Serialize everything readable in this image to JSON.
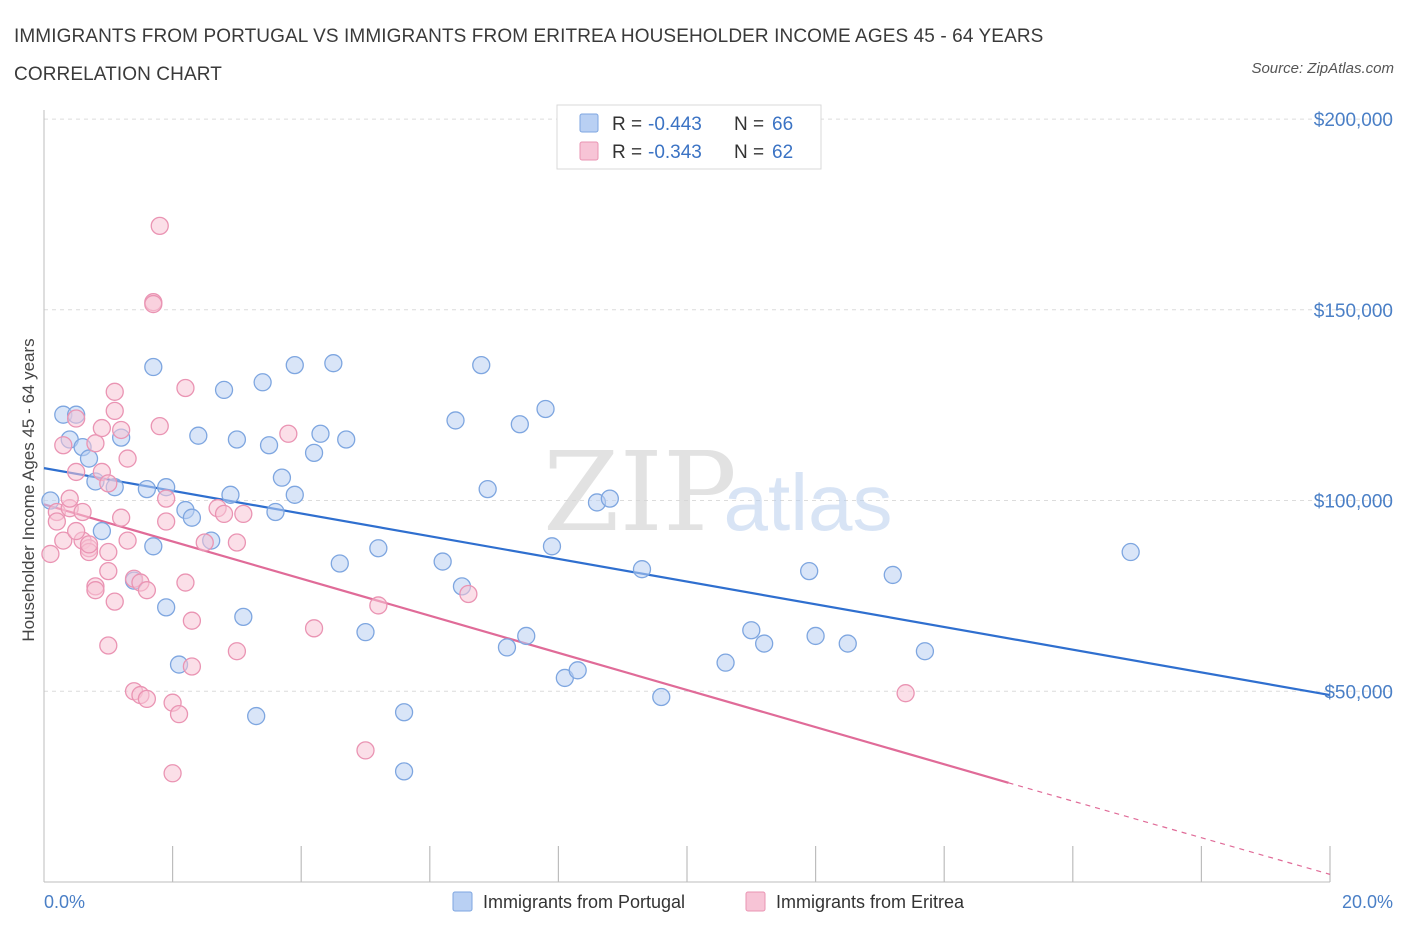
{
  "title": "IMMIGRANTS FROM PORTUGAL VS IMMIGRANTS FROM ERITREA HOUSEHOLDER INCOME AGES 45 - 64 YEARS CORRELATION CHART",
  "source": "Source: ZipAtlas.com",
  "watermark": {
    "zip": "ZIP",
    "atlas": "atlas"
  },
  "chart_data": {
    "type": "scatter",
    "ylabel": "Householder Income Ages 45 - 64 years",
    "xlim": [
      0,
      20
    ],
    "ylim": [
      0,
      205000
    ],
    "x_tick_labels": [
      "0.0%",
      "20.0%"
    ],
    "y_ticks": [
      50000,
      100000,
      150000,
      200000
    ],
    "y_tick_labels": [
      "$50,000",
      "$100,000",
      "$150,000",
      "$200,000"
    ],
    "grid": true,
    "legend": {
      "placement": "top-center",
      "rows": [
        {
          "r_label": "R = ",
          "r": "-0.443",
          "n_label": "N = ",
          "n": "66"
        },
        {
          "r_label": "R = ",
          "r": "-0.343",
          "n_label": "N = ",
          "n": "62"
        }
      ]
    },
    "series": [
      {
        "name": "Immigrants from Portugal",
        "color": "#7ea6e0",
        "fill": "#b9d0f3",
        "line_color": "#2f6fcf",
        "trend": {
          "x": [
            0,
            20
          ],
          "y": [
            108500,
            49000
          ]
        },
        "points": [
          [
            0.1,
            100000
          ],
          [
            0.3,
            122500
          ],
          [
            0.5,
            122500
          ],
          [
            0.4,
            116000
          ],
          [
            0.6,
            114000
          ],
          [
            0.7,
            111000
          ],
          [
            0.8,
            105000
          ],
          [
            1.2,
            116500
          ],
          [
            1.1,
            103500
          ],
          [
            0.9,
            92000
          ],
          [
            1.4,
            79000
          ],
          [
            1.6,
            103000
          ],
          [
            1.7,
            135000
          ],
          [
            1.7,
            88000
          ],
          [
            1.9,
            103500
          ],
          [
            1.9,
            72000
          ],
          [
            2.1,
            57000
          ],
          [
            2.2,
            97500
          ],
          [
            2.3,
            95500
          ],
          [
            2.4,
            117000
          ],
          [
            2.6,
            89500
          ],
          [
            2.8,
            129000
          ],
          [
            2.9,
            101500
          ],
          [
            3.0,
            116000
          ],
          [
            3.1,
            69500
          ],
          [
            3.3,
            43500
          ],
          [
            3.4,
            131000
          ],
          [
            3.5,
            114500
          ],
          [
            3.6,
            97000
          ],
          [
            3.7,
            106000
          ],
          [
            3.9,
            101500
          ],
          [
            3.9,
            135500
          ],
          [
            4.2,
            112500
          ],
          [
            4.3,
            117500
          ],
          [
            4.5,
            136000
          ],
          [
            4.6,
            83500
          ],
          [
            4.7,
            116000
          ],
          [
            5.0,
            65500
          ],
          [
            5.2,
            87500
          ],
          [
            5.6,
            44500
          ],
          [
            5.6,
            29000
          ],
          [
            6.2,
            84000
          ],
          [
            6.4,
            121000
          ],
          [
            6.5,
            77500
          ],
          [
            6.8,
            135500
          ],
          [
            6.9,
            103000
          ],
          [
            7.2,
            61500
          ],
          [
            7.4,
            120000
          ],
          [
            7.5,
            64500
          ],
          [
            7.8,
            124000
          ],
          [
            7.9,
            88000
          ],
          [
            8.1,
            53500
          ],
          [
            8.3,
            55500
          ],
          [
            8.6,
            99500
          ],
          [
            8.8,
            100500
          ],
          [
            9.3,
            82000
          ],
          [
            9.6,
            48500
          ],
          [
            10.6,
            57500
          ],
          [
            11.0,
            66000
          ],
          [
            11.2,
            62500
          ],
          [
            11.9,
            81500
          ],
          [
            12.0,
            64500
          ],
          [
            12.5,
            62500
          ],
          [
            13.2,
            80500
          ],
          [
            13.7,
            60500
          ],
          [
            16.9,
            86500
          ]
        ]
      },
      {
        "name": "Immigrants from Eritrea",
        "color": "#ea94b3",
        "fill": "#f7c4d6",
        "line_color": "#e06b98",
        "trend": {
          "x": [
            0,
            15
          ],
          "y": [
            99000,
            26000
          ]
        },
        "trend_extension": {
          "x": [
            15,
            20
          ],
          "y": [
            26000,
            2000
          ]
        },
        "points": [
          [
            0.1,
            86000
          ],
          [
            0.2,
            97000
          ],
          [
            0.2,
            94500
          ],
          [
            0.3,
            89500
          ],
          [
            0.3,
            114500
          ],
          [
            0.4,
            98000
          ],
          [
            0.4,
            100500
          ],
          [
            0.5,
            107500
          ],
          [
            0.5,
            121500
          ],
          [
            0.6,
            89500
          ],
          [
            0.6,
            97000
          ],
          [
            0.7,
            87500
          ],
          [
            0.7,
            86500
          ],
          [
            0.7,
            88500
          ],
          [
            0.8,
            115000
          ],
          [
            0.8,
            77500
          ],
          [
            0.8,
            76500
          ],
          [
            0.9,
            119000
          ],
          [
            0.9,
            107500
          ],
          [
            1.0,
            104500
          ],
          [
            1.0,
            86500
          ],
          [
            1.0,
            81500
          ],
          [
            1.1,
            128500
          ],
          [
            1.1,
            123500
          ],
          [
            1.1,
            73500
          ],
          [
            1.2,
            95500
          ],
          [
            1.2,
            118500
          ],
          [
            1.3,
            111000
          ],
          [
            1.3,
            89500
          ],
          [
            1.4,
            79500
          ],
          [
            1.4,
            50000
          ],
          [
            1.5,
            49000
          ],
          [
            1.5,
            78500
          ],
          [
            1.6,
            48000
          ],
          [
            1.6,
            76500
          ],
          [
            1.7,
            152000
          ],
          [
            1.7,
            151500
          ],
          [
            1.8,
            119500
          ],
          [
            1.8,
            172000
          ],
          [
            1.9,
            100500
          ],
          [
            1.9,
            94500
          ],
          [
            2.0,
            47000
          ],
          [
            2.0,
            28500
          ],
          [
            2.1,
            44000
          ],
          [
            2.2,
            78500
          ],
          [
            2.2,
            129500
          ],
          [
            2.3,
            68500
          ],
          [
            2.3,
            56500
          ],
          [
            2.5,
            89000
          ],
          [
            2.7,
            98000
          ],
          [
            2.8,
            96500
          ],
          [
            3.0,
            89000
          ],
          [
            3.0,
            60500
          ],
          [
            3.1,
            96500
          ],
          [
            3.8,
            117500
          ],
          [
            4.2,
            66500
          ],
          [
            5.0,
            34500
          ],
          [
            5.2,
            72500
          ],
          [
            6.6,
            75500
          ],
          [
            13.4,
            49500
          ],
          [
            1.0,
            62000
          ],
          [
            0.5,
            92000
          ]
        ]
      }
    ]
  }
}
